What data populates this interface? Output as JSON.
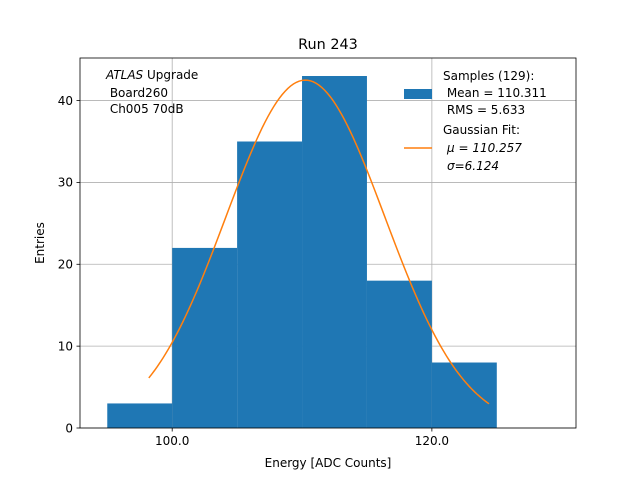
{
  "chart_data": {
    "type": "bar",
    "title": "Run 243",
    "xlabel": "Energy [ADC Counts]",
    "ylabel": "Entries",
    "xlim": [
      92.9,
      131.1
    ],
    "ylim": [
      0,
      45.2
    ],
    "grid": true,
    "x_ticks": [
      {
        "value": 100,
        "label": "100.0"
      },
      {
        "value": 120,
        "label": "120.0"
      }
    ],
    "y_ticks": [
      {
        "value": 0,
        "label": "0"
      },
      {
        "value": 10,
        "label": "10"
      },
      {
        "value": 20,
        "label": "20"
      },
      {
        "value": 30,
        "label": "30"
      },
      {
        "value": 40,
        "label": "40"
      }
    ],
    "histogram": {
      "name": "Samples (129)",
      "bin_edges": [
        95,
        100,
        105,
        110,
        115,
        120,
        125
      ],
      "counts": [
        3,
        22,
        35,
        43,
        18,
        8
      ],
      "color": "#1f77b4"
    },
    "fit": {
      "name": "Gaussian Fit",
      "type": "gaussian",
      "amplitude": 42.5,
      "mu": 110.257,
      "sigma": 6.124,
      "x_range": [
        98.2,
        124.4
      ],
      "color": "#ff7f0e"
    },
    "annotation": {
      "italic": "ATLAS",
      "rest": " Upgrade",
      "line2": " Board260",
      "line3": " Ch005 70dB"
    },
    "legend": {
      "position": "top-right",
      "samples": [
        "Samples (129):",
        " Mean = 110.311",
        " RMS = 5.633"
      ],
      "fit": [
        "Gaussian Fit:",
        "μ = 110.257",
        "σ=6.124"
      ]
    }
  }
}
